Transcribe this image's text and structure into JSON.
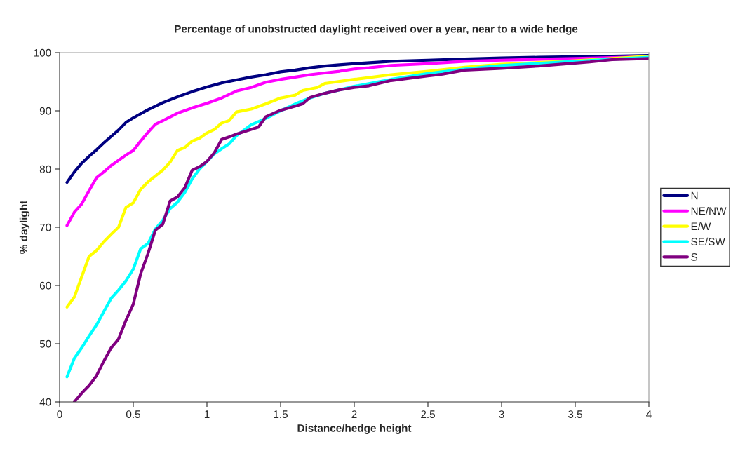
{
  "chart_data": {
    "type": "line",
    "title": "Percentage of unobstructed daylight received over a year, near to a wide hedge",
    "xlabel": "Distance/hedge height",
    "ylabel": "% daylight",
    "xlim": [
      0,
      4
    ],
    "xticks": [
      0,
      0.5,
      1,
      1.5,
      2,
      2.5,
      3,
      3.5,
      4
    ],
    "ylim": [
      40,
      100
    ],
    "yticks": [
      40,
      50,
      60,
      70,
      80,
      90,
      100
    ],
    "grid": false,
    "legend": "right",
    "marker": "none",
    "line_style": "solid",
    "series": [
      {
        "name": "N",
        "color": "#000080",
        "x": [
          0.05,
          0.1,
          0.15,
          0.2,
          0.25,
          0.3,
          0.35,
          0.4,
          0.45,
          0.5,
          0.6,
          0.7,
          0.8,
          0.9,
          1.0,
          1.1,
          1.2,
          1.3,
          1.4,
          1.5,
          1.6,
          1.7,
          1.8,
          1.9,
          2.0,
          2.25,
          2.5,
          2.75,
          3.0,
          3.25,
          3.5,
          3.75,
          4.0
        ],
        "values": [
          77.7,
          79.5,
          81,
          82.2,
          83.3,
          84.5,
          85.6,
          86.7,
          88,
          88.8,
          90.2,
          91.4,
          92.4,
          93.3,
          94.1,
          94.8,
          95.3,
          95.8,
          96.2,
          96.7,
          97,
          97.4,
          97.7,
          97.9,
          98.1,
          98.5,
          98.7,
          98.9,
          99.1,
          99.2,
          99.3,
          99.4,
          99.5
        ]
      },
      {
        "name": "NE/NW",
        "color": "#ff00ff",
        "x": [
          0.05,
          0.1,
          0.15,
          0.2,
          0.25,
          0.3,
          0.35,
          0.4,
          0.45,
          0.5,
          0.55,
          0.6,
          0.65,
          0.7,
          0.8,
          0.9,
          1.0,
          1.1,
          1.2,
          1.3,
          1.4,
          1.5,
          1.6,
          1.7,
          1.8,
          1.9,
          2.0,
          2.1,
          2.25,
          2.5,
          2.75,
          3.0,
          3.5,
          4.0
        ],
        "values": [
          70.3,
          72.6,
          74,
          76.3,
          78.5,
          79.5,
          80.6,
          81.5,
          82.4,
          83.2,
          84.8,
          86.3,
          87.7,
          88.3,
          89.6,
          90.5,
          91.3,
          92.2,
          93.4,
          94,
          94.9,
          95.4,
          95.8,
          96.2,
          96.5,
          96.8,
          97.2,
          97.4,
          97.8,
          98.1,
          98.5,
          98.7,
          99,
          99.3
        ]
      },
      {
        "name": "E/W",
        "color": "#ffff00",
        "x": [
          0.05,
          0.1,
          0.15,
          0.2,
          0.25,
          0.3,
          0.35,
          0.4,
          0.45,
          0.5,
          0.55,
          0.6,
          0.65,
          0.7,
          0.75,
          0.8,
          0.85,
          0.9,
          0.95,
          1.0,
          1.05,
          1.1,
          1.15,
          1.2,
          1.3,
          1.4,
          1.5,
          1.6,
          1.65,
          1.75,
          1.8,
          2.0,
          2.25,
          2.5,
          2.75,
          3.0,
          3.5,
          4.0
        ],
        "values": [
          56.3,
          58,
          61.5,
          65,
          66,
          67.5,
          68.8,
          70,
          73.4,
          74.2,
          76.5,
          77.8,
          78.8,
          79.8,
          81.2,
          83.2,
          83.7,
          84.8,
          85.3,
          86.2,
          86.8,
          87.9,
          88.3,
          89.8,
          90.3,
          91.2,
          92.2,
          92.7,
          93.5,
          94,
          94.7,
          95.4,
          96.2,
          96.8,
          97.5,
          98,
          98.6,
          99.4
        ]
      },
      {
        "name": "SE/SW",
        "color": "#00ffff",
        "x": [
          0.05,
          0.1,
          0.15,
          0.2,
          0.25,
          0.3,
          0.35,
          0.4,
          0.45,
          0.5,
          0.55,
          0.6,
          0.65,
          0.7,
          0.75,
          0.8,
          0.85,
          0.9,
          0.95,
          1.0,
          1.05,
          1.1,
          1.15,
          1.2,
          1.3,
          1.4,
          1.5,
          1.6,
          1.7,
          1.8,
          1.9,
          2.0,
          2.25,
          2.5,
          2.75,
          3.0,
          3.5,
          4.0
        ],
        "values": [
          44.3,
          47.5,
          49.3,
          51.3,
          53.2,
          55.5,
          57.8,
          59.2,
          60.8,
          62.8,
          66.3,
          67.2,
          69.7,
          71.2,
          73.2,
          74.3,
          76,
          78.3,
          80,
          81.3,
          82.6,
          83.5,
          84.3,
          85.7,
          87.6,
          88.7,
          90,
          91.2,
          92.2,
          93,
          93.6,
          94.2,
          95.4,
          96.4,
          97.2,
          97.8,
          98.5,
          99.2
        ]
      },
      {
        "name": "S",
        "color": "#800080",
        "x": [
          0.1,
          0.15,
          0.2,
          0.25,
          0.3,
          0.35,
          0.4,
          0.45,
          0.5,
          0.55,
          0.6,
          0.65,
          0.7,
          0.75,
          0.8,
          0.85,
          0.9,
          0.95,
          1.0,
          1.05,
          1.1,
          1.15,
          1.2,
          1.3,
          1.35,
          1.4,
          1.5,
          1.6,
          1.65,
          1.7,
          1.8,
          1.9,
          2.0,
          2.1,
          2.25,
          2.5,
          2.6,
          2.75,
          3.0,
          3.25,
          3.5,
          3.6,
          3.75,
          4.0
        ],
        "values": [
          40,
          41.5,
          42.8,
          44.5,
          47,
          49.3,
          50.8,
          54,
          56.8,
          62,
          65.5,
          69.5,
          70.5,
          74.5,
          75.2,
          76.8,
          79.8,
          80.4,
          81.3,
          82.8,
          85.1,
          85.5,
          86,
          86.8,
          87.2,
          89,
          90.1,
          90.8,
          91.2,
          92.3,
          93,
          93.6,
          94,
          94.3,
          95.2,
          96,
          96.3,
          97,
          97.3,
          97.7,
          98.2,
          98.4,
          98.8,
          99
        ]
      }
    ]
  }
}
